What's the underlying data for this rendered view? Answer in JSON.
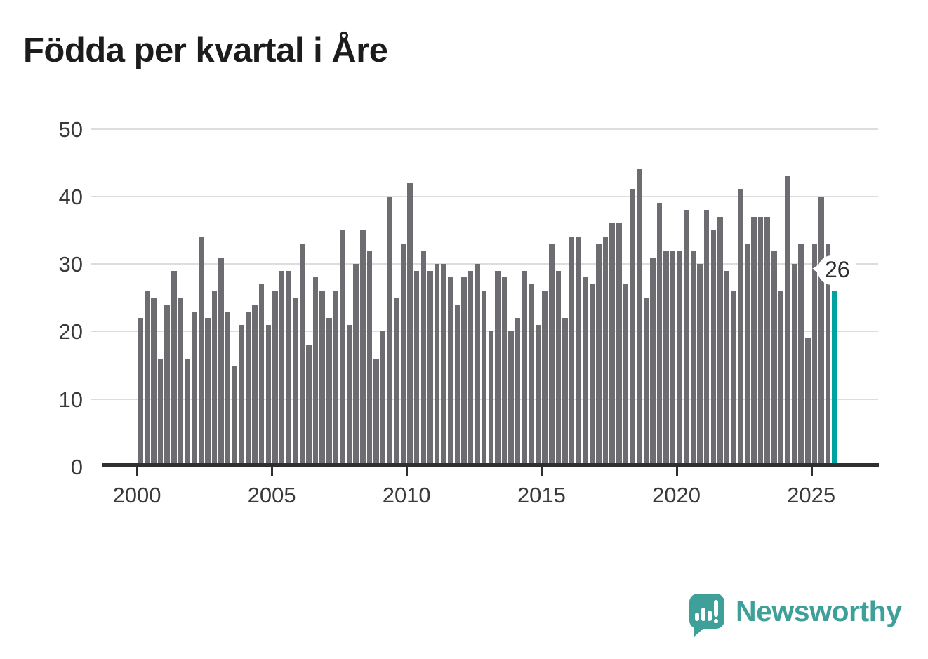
{
  "title": "Födda per kvartal i Åre",
  "chart_data": {
    "type": "bar",
    "title": "Födda per kvartal i Åre",
    "x_start": "2000-Q1",
    "x_end": "2025-Q4",
    "categories_note": "104 quarterly values, 2000Q1 to 2025Q4, 4 per year",
    "values": [
      22,
      26,
      25,
      16,
      24,
      29,
      25,
      16,
      23,
      34,
      22,
      26,
      31,
      23,
      15,
      21,
      23,
      24,
      27,
      21,
      26,
      29,
      29,
      25,
      33,
      18,
      28,
      26,
      22,
      26,
      35,
      21,
      30,
      35,
      32,
      16,
      20,
      40,
      25,
      33,
      42,
      29,
      32,
      29,
      30,
      30,
      28,
      24,
      28,
      29,
      30,
      26,
      20,
      29,
      28,
      20,
      22,
      29,
      27,
      21,
      26,
      33,
      29,
      22,
      34,
      34,
      28,
      27,
      33,
      34,
      36,
      36,
      27,
      41,
      44,
      25,
      31,
      39,
      32,
      32,
      32,
      38,
      32,
      30,
      38,
      35,
      37,
      29,
      26,
      41,
      33,
      37,
      37,
      37,
      32,
      26,
      43,
      30,
      33,
      19,
      33,
      40,
      33,
      26
    ],
    "xticks": [
      2000,
      2005,
      2010,
      2015,
      2020,
      2025
    ],
    "yticks": [
      0,
      10,
      20,
      30,
      40,
      50
    ],
    "ylim": [
      0,
      50
    ],
    "grid": true,
    "bar_color": "#6d6d71",
    "highlight": {
      "index": 103,
      "value": 26,
      "label": "26",
      "color": "#00a2a0"
    }
  },
  "branding": {
    "name": "Newsworthy",
    "color": "#3f9f99",
    "icon": "newsworthy-logo"
  }
}
